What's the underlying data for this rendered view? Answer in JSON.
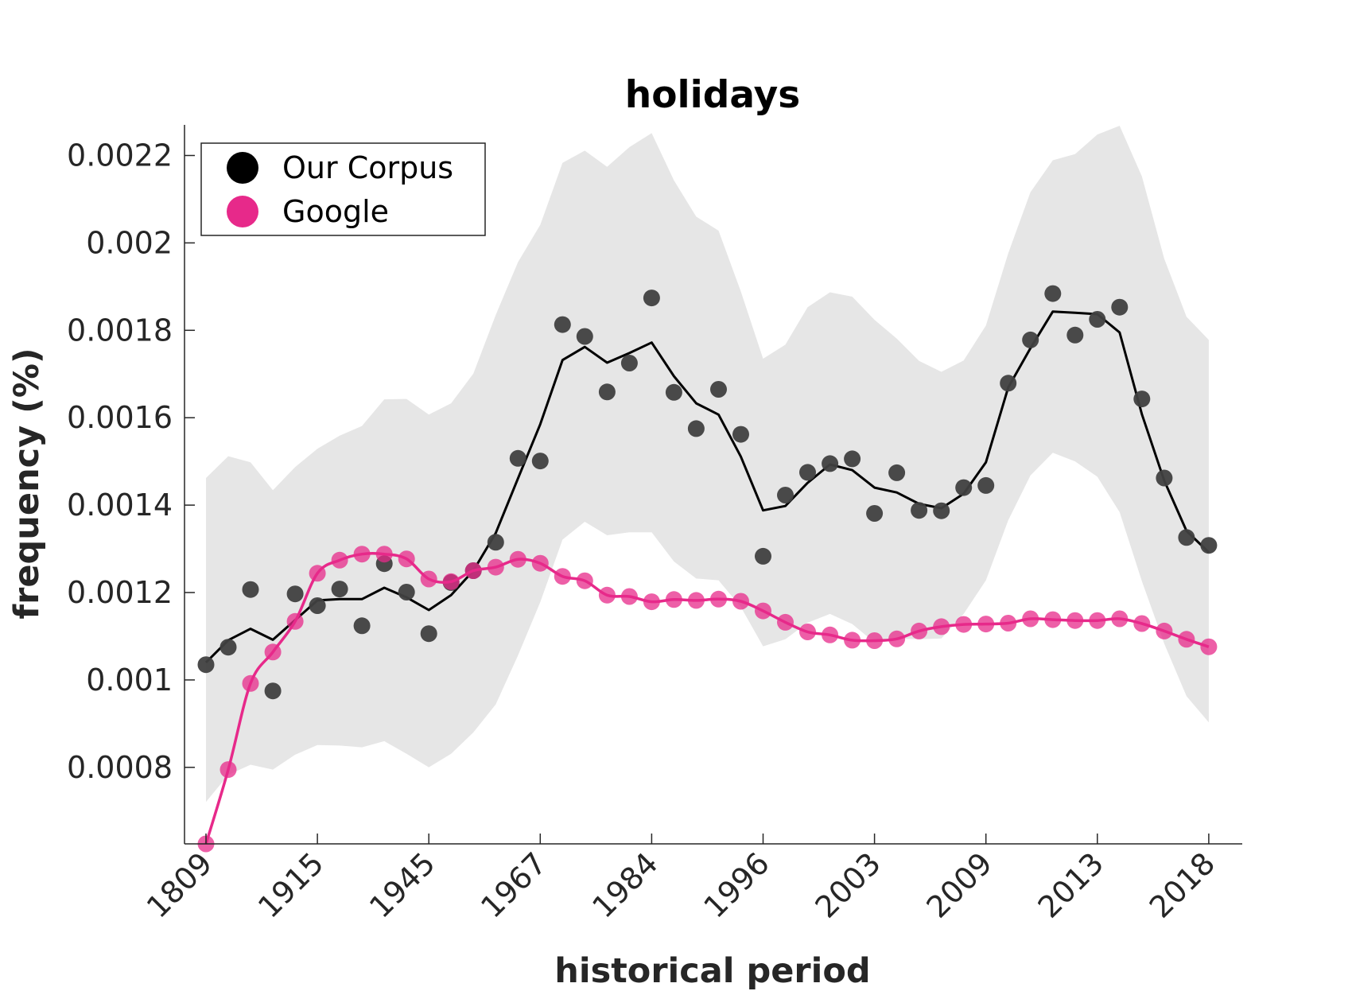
{
  "chart_data": {
    "type": "line",
    "title": "holidays",
    "xlabel": "historical period",
    "ylabel": "frequency (%)",
    "x_tick_labels": [
      "1809",
      "1915",
      "1945",
      "1967",
      "1984",
      "1996",
      "2003",
      "2009",
      "2013",
      "2018"
    ],
    "y_ticks": [
      0.0008,
      0.001,
      0.0012,
      0.0014,
      0.0016,
      0.0018,
      0.002,
      0.0022
    ],
    "y_tick_labels": [
      "0.0008",
      "0.001",
      "0.0012",
      "0.0014",
      "0.0016",
      "0.0018",
      "0.002",
      "0.0022"
    ],
    "ylim": [
      0.000625,
      0.00227
    ],
    "legend_position": "top-left",
    "grid": false,
    "series": [
      {
        "name": "Our Corpus",
        "color": "#000000",
        "marker_color": "#404040",
        "points": [
          0.001035,
          0.001075,
          0.001207,
          0.000975,
          0.001197,
          0.00117,
          0.001208,
          0.001124,
          0.001266,
          0.001201,
          0.001106,
          0.001223,
          0.00125,
          0.001315,
          0.001507,
          0.001501,
          0.001813,
          0.001786,
          0.001659,
          0.001725,
          0.001874,
          0.001658,
          0.001575,
          0.001665,
          0.001562,
          0.001283,
          0.001423,
          0.001475,
          0.001495,
          0.001506,
          0.001381,
          0.001474,
          0.001388,
          0.001387,
          0.00144,
          0.001445,
          0.001679,
          0.001778,
          0.001884,
          0.001789,
          0.001825,
          0.001853,
          0.001643,
          0.001462,
          0.001326,
          0.001308
        ],
        "smooth": [
          0.00104,
          0.001091,
          0.001117,
          0.001092,
          0.001137,
          0.001182,
          0.001185,
          0.001185,
          0.001211,
          0.001189,
          0.00116,
          0.001194,
          0.00125,
          0.001336,
          0.001461,
          0.001585,
          0.001732,
          0.001762,
          0.001726,
          0.001748,
          0.001772,
          0.001695,
          0.001633,
          0.001607,
          0.001511,
          0.001388,
          0.001398,
          0.001451,
          0.001493,
          0.00148,
          0.00144,
          0.001429,
          0.001403,
          0.001393,
          0.001426,
          0.001498,
          0.001669,
          0.001759,
          0.001843,
          0.00184,
          0.001837,
          0.001795,
          0.001608,
          0.001456,
          0.001341,
          0.001292
        ],
        "band_upper": [
          0.001462,
          0.001512,
          0.001498,
          0.001434,
          0.001487,
          0.001529,
          0.001559,
          0.001581,
          0.001642,
          0.001643,
          0.001607,
          0.001633,
          0.001701,
          0.001835,
          0.001956,
          0.002041,
          0.002183,
          0.002211,
          0.002174,
          0.002219,
          0.002251,
          0.002143,
          0.00206,
          0.002028,
          0.001889,
          0.001735,
          0.001767,
          0.001853,
          0.001887,
          0.001877,
          0.001824,
          0.001781,
          0.00173,
          0.001705,
          0.001731,
          0.001811,
          0.001976,
          0.002116,
          0.002189,
          0.002203,
          0.002248,
          0.002268,
          0.002152,
          0.001964,
          0.001831,
          0.001778
        ],
        "band_lower": [
          0.000721,
          0.000783,
          0.000806,
          0.000795,
          0.000829,
          0.000851,
          0.00085,
          0.000846,
          0.00086,
          0.000831,
          0.0008,
          0.000831,
          0.00088,
          0.000944,
          0.001056,
          0.001178,
          0.001321,
          0.001362,
          0.001331,
          0.001338,
          0.001338,
          0.001271,
          0.001232,
          0.001228,
          0.001167,
          0.001077,
          0.001093,
          0.001131,
          0.001151,
          0.001128,
          0.001086,
          0.001095,
          0.001093,
          0.001095,
          0.001151,
          0.001228,
          0.001365,
          0.001468,
          0.00152,
          0.0015,
          0.001465,
          0.001384,
          0.001226,
          0.001083,
          0.000963,
          0.000903
        ]
      },
      {
        "name": "Google",
        "color": "#e7298a",
        "points": [
          0.000625,
          0.000795,
          0.000992,
          0.001064,
          0.001134,
          0.001244,
          0.001274,
          0.001288,
          0.001288,
          0.001277,
          0.001231,
          0.001225,
          0.00125,
          0.001258,
          0.001276,
          0.001267,
          0.001237,
          0.001227,
          0.001194,
          0.001191,
          0.001179,
          0.001184,
          0.001182,
          0.001185,
          0.00118,
          0.001158,
          0.001132,
          0.00111,
          0.001103,
          0.001091,
          0.00109,
          0.001094,
          0.001112,
          0.001122,
          0.001127,
          0.001128,
          0.00113,
          0.00114,
          0.001138,
          0.001136,
          0.001136,
          0.00114,
          0.001129,
          0.001112,
          0.001093,
          0.001076
        ]
      }
    ]
  }
}
